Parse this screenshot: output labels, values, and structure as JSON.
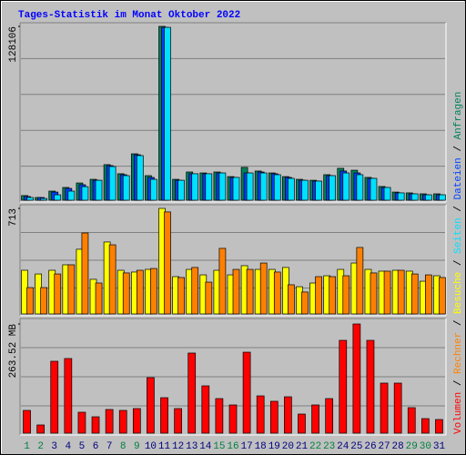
{
  "chart_data": {
    "type": "bar",
    "title": "Tages-Statistik im Monat Oktober 2022",
    "categories": [
      "1",
      "2",
      "3",
      "4",
      "5",
      "6",
      "7",
      "8",
      "9",
      "10",
      "11",
      "12",
      "13",
      "14",
      "15",
      "16",
      "17",
      "18",
      "19",
      "20",
      "21",
      "22",
      "23",
      "24",
      "25",
      "26",
      "27",
      "28",
      "29",
      "30",
      "31"
    ],
    "category_colors": [
      "#008040",
      "#008040",
      "#000080",
      "#000080",
      "#000080",
      "#000080",
      "#000080",
      "#008040",
      "#008040",
      "#000080",
      "#000080",
      "#000080",
      "#000080",
      "#000080",
      "#008040",
      "#008040",
      "#000080",
      "#000080",
      "#000080",
      "#000080",
      "#000080",
      "#008040",
      "#008040",
      "#000080",
      "#000080",
      "#000080",
      "#000080",
      "#000080",
      "#008040",
      "#008040",
      "#000080"
    ],
    "legend_separator": " / ",
    "panels": [
      {
        "ylim": [
          0,
          128106
        ],
        "yticks": [
          128106
        ],
        "series": [
          {
            "name": "Anfragen",
            "color": "#00805c",
            "values": [
              3400,
              2000,
              6700,
              9400,
              12700,
              15400,
              26200,
              19500,
              34200,
              18100,
              128106,
              15400,
              20800,
              20100,
              20800,
              17400,
              24200,
              21500,
              20100,
              17400,
              15400,
              14700,
              18800,
              23500,
              22100,
              16800,
              10100,
              6000,
              5400,
              4700,
              4700
            ]
          },
          {
            "name": "Dateien",
            "color": "#0040ff",
            "values": [
              2700,
              2000,
              6000,
              8700,
              11400,
              14700,
              25500,
              18800,
              33500,
              16800,
              127400,
              14700,
              19500,
              19500,
              20100,
              16800,
              20100,
              20800,
              19500,
              16800,
              14700,
              14100,
              18100,
              21500,
              20100,
              16100,
              9400,
              5400,
              4700,
              4000,
              4000
            ]
          },
          {
            "name": "Seiten",
            "color": "#00e0ff",
            "values": [
              2000,
              1300,
              4000,
              6700,
              10000,
              14700,
              24800,
              18100,
              32900,
              15400,
              127400,
              14700,
              19500,
              19500,
              20100,
              16800,
              20100,
              20100,
              18800,
              16100,
              14700,
              14100,
              18100,
              20100,
              18800,
              16100,
              9400,
              5400,
              4700,
              4000,
              4000
            ]
          }
        ]
      },
      {
        "ylim": [
          0,
          713
        ],
        "yticks": [
          713
        ],
        "series": [
          {
            "name": "Besuche",
            "color": "#ffff00",
            "values": [
              295,
              270,
              295,
              332,
              437,
              234,
              486,
              295,
              283,
              301,
              713,
              252,
              301,
              264,
              295,
              264,
              326,
              301,
              301,
              314,
              184,
              209,
              258,
              301,
              344,
              301,
              289,
              295,
              289,
              221,
              258
            ]
          },
          {
            "name": "Rechner",
            "color": "#ff8000",
            "values": [
              178,
              178,
              270,
              332,
              547,
              209,
              467,
              277,
              295,
              307,
              689,
              246,
              314,
              215,
              443,
              301,
              301,
              344,
              283,
              197,
              148,
              252,
              252,
              258,
              449,
              277,
              289,
              295,
              270,
              264,
              246
            ]
          }
        ]
      },
      {
        "ylim": [
          0,
          263.52
        ],
        "yticks": [
          {
            "value": 263.52,
            "label": "263.52 MB"
          }
        ],
        "series": [
          {
            "name": "Volumen",
            "color": "#ff0000",
            "values": [
              54.9,
              19.8,
              173.5,
              180.1,
              50.5,
              39.5,
              57.1,
              54.9,
              59.3,
              134,
              85.6,
              59.3,
              193.3,
              114.2,
              83.4,
              68.1,
              195.4,
              90,
              76.9,
              87.8,
              46.1,
              68.1,
              83.4,
              224,
              263.52,
              224,
              120.8,
              120.8,
              61.5,
              35.1,
              32.9
            ]
          }
        ]
      }
    ]
  }
}
